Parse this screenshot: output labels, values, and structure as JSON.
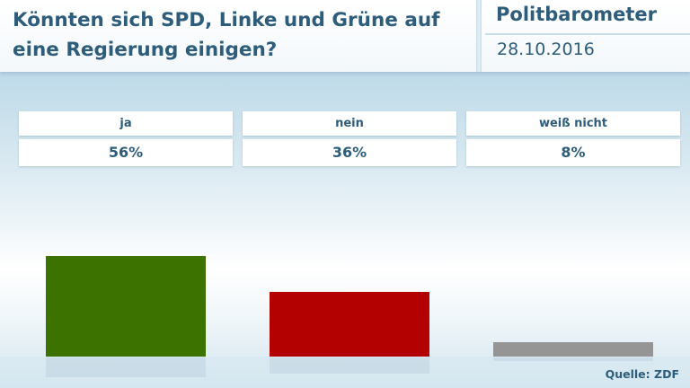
{
  "header": {
    "title": "Könnten sich SPD, Linke und Grüne auf eine Regierung einigen?",
    "brand": "Politbarometer",
    "date": "28.10.2016"
  },
  "table": {
    "labels": [
      "ja",
      "nein",
      "weiß nicht"
    ],
    "values": [
      "56%",
      "36%",
      "8%"
    ]
  },
  "chart_data": {
    "type": "bar",
    "title": "Könnten sich SPD, Linke und Grüne auf eine Regierung einigen?",
    "categories": [
      "ja",
      "nein",
      "weiß nicht"
    ],
    "values": [
      56,
      36,
      8
    ],
    "unit": "%",
    "colors": [
      "#3c7200",
      "#b30000",
      "#959595"
    ],
    "ylim": [
      0,
      100
    ],
    "grid": false,
    "legend": "none"
  },
  "source": "Quelle: ZDF"
}
